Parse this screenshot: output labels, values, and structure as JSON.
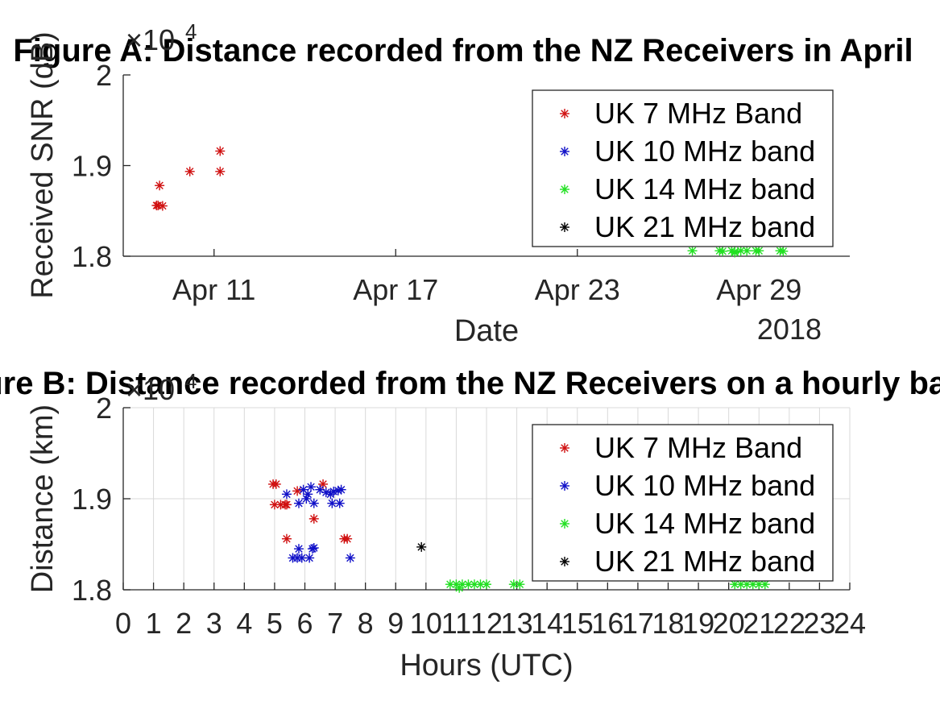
{
  "chart_data": [
    {
      "type": "scatter",
      "title": "Figure A: Distance recorded from the NZ Receivers in April",
      "xlabel": "Date",
      "ylabel": "Received SNR (dB)",
      "x_secondary_label": "2018",
      "y_exponent_label": "×10",
      "y_exponent_power": "4",
      "xlim": [
        8,
        32
      ],
      "ylim": [
        18000,
        20000
      ],
      "grid": false,
      "x_ticks": [
        11,
        17,
        23,
        29
      ],
      "x_tick_labels": [
        "Apr 11",
        "Apr 17",
        "Apr 23",
        "Apr 29"
      ],
      "y_ticks": [
        18000,
        19000,
        20000
      ],
      "y_tick_labels": [
        "1.8",
        "1.9",
        "2"
      ],
      "legend_position": "top-right",
      "series": [
        {
          "name": "UK 7 MHz Band",
          "color": "#d01010",
          "x": [
            9.2,
            9.1,
            9.3,
            9.15,
            10.2,
            11.2,
            11.2
          ],
          "y": [
            18780,
            18560,
            18555,
            18560,
            18935,
            19160,
            18935
          ]
        },
        {
          "name": "UK 10 MHz band",
          "color": "#1010c8",
          "x": [],
          "y": []
        },
        {
          "name": "UK 14 MHz band",
          "color": "#22e022",
          "x": [
            26.8,
            27.7,
            27.8,
            28.1,
            28.2,
            28.4,
            28.6,
            28.2,
            28.9,
            29.0,
            29.7,
            29.8
          ],
          "y": [
            18060,
            18060,
            18055,
            18060,
            18050,
            18060,
            18060,
            18040,
            18060,
            18060,
            18060,
            18055
          ]
        },
        {
          "name": "UK 21 MHz band",
          "color": "#000000",
          "x": [],
          "y": []
        }
      ]
    },
    {
      "type": "scatter",
      "title": "Figure B: Distance recorded from the NZ Receivers on a hourly basis",
      "xlabel": "Hours (UTC)",
      "ylabel": "Distance (km)",
      "y_exponent_label": "×10",
      "y_exponent_power": "4",
      "xlim": [
        0,
        24
      ],
      "ylim": [
        18000,
        20000
      ],
      "grid": true,
      "x_ticks": [
        0,
        1,
        2,
        3,
        4,
        5,
        6,
        7,
        8,
        9,
        10,
        11,
        12,
        13,
        14,
        15,
        16,
        17,
        18,
        19,
        20,
        21,
        22,
        23,
        24
      ],
      "x_tick_labels": [
        "0",
        "1",
        "2",
        "3",
        "4",
        "5",
        "6",
        "7",
        "8",
        "9",
        "10",
        "11",
        "12",
        "13",
        "14",
        "15",
        "16",
        "17",
        "18",
        "19",
        "20",
        "21",
        "22",
        "23",
        "24"
      ],
      "y_ticks": [
        18000,
        19000,
        20000
      ],
      "y_tick_labels": [
        "1.8",
        "1.9",
        "2"
      ],
      "legend_position": "top-right",
      "series": [
        {
          "name": "UK 7 MHz Band",
          "color": "#d01010",
          "x": [
            4.95,
            5.05,
            5.0,
            5.2,
            5.35,
            5.4,
            5.4,
            5.75,
            6.3,
            6.6,
            7.3,
            7.4
          ],
          "y": [
            19160,
            19160,
            18935,
            18935,
            18935,
            18935,
            18560,
            19085,
            18780,
            19160,
            18560,
            18560
          ]
        },
        {
          "name": "UK 10 MHz band",
          "color": "#1010c8",
          "x": [
            5.4,
            5.8,
            5.95,
            6.1,
            6.05,
            6.2,
            6.3,
            6.5,
            6.7,
            6.85,
            6.95,
            7.1,
            7.2,
            5.6,
            5.75,
            5.9,
            6.15,
            5.8,
            6.25,
            6.3,
            7.5,
            6.9,
            7.15
          ],
          "y": [
            19050,
            18950,
            19100,
            19050,
            19000,
            19130,
            18950,
            19100,
            19070,
            19050,
            19080,
            19090,
            19100,
            18350,
            18350,
            18350,
            18350,
            18450,
            18450,
            18460,
            18350,
            18950,
            18950
          ]
        },
        {
          "name": "UK 14 MHz band",
          "color": "#22e022",
          "x": [
            10.8,
            11.0,
            11.2,
            11.4,
            11.6,
            11.8,
            12.0,
            11.1,
            12.9,
            13.1,
            20.2,
            20.4,
            20.6,
            20.8,
            21.0,
            21.2
          ],
          "y": [
            18060,
            18060,
            18060,
            18060,
            18060,
            18060,
            18060,
            18020,
            18060,
            18060,
            18060,
            18060,
            18060,
            18060,
            18060,
            18060
          ]
        },
        {
          "name": "UK 21 MHz band",
          "color": "#000000",
          "x": [
            9.85
          ],
          "y": [
            18470
          ]
        }
      ]
    }
  ]
}
